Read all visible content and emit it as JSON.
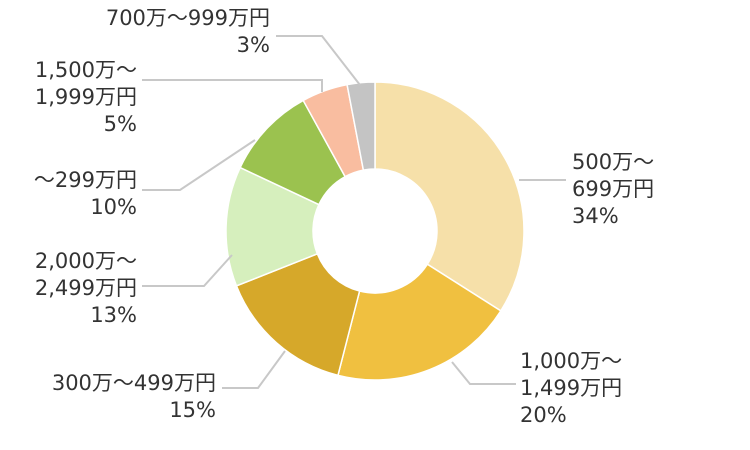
{
  "chart_data": {
    "type": "pie",
    "variant": "donut",
    "title": "",
    "legend": "none",
    "slices": [
      {
        "label": [
          "500万～",
          "699万円"
        ],
        "value": 34,
        "pct": "34%",
        "color": "#f6e0a9"
      },
      {
        "label": [
          "1,000万～",
          "1,499万円"
        ],
        "value": 20,
        "pct": "20%",
        "color": "#f0c040"
      },
      {
        "label": [
          "300万～499万円"
        ],
        "value": 15,
        "pct": "15%",
        "color": "#d6a82a"
      },
      {
        "label": [
          "2,000万～",
          "2,499万円"
        ],
        "value": 13,
        "pct": "13%",
        "color": "#d6efbd"
      },
      {
        "label": [
          "～299万円"
        ],
        "value": 10,
        "pct": "10%",
        "color": "#9bc24f"
      },
      {
        "label": [
          "1,500万～",
          "1,999万円"
        ],
        "value": 5,
        "pct": "5%",
        "color": "#f9bda0"
      },
      {
        "label": [
          "700万～999万円"
        ],
        "value": 3,
        "pct": "3%",
        "color": "#c4c4c4"
      }
    ]
  }
}
